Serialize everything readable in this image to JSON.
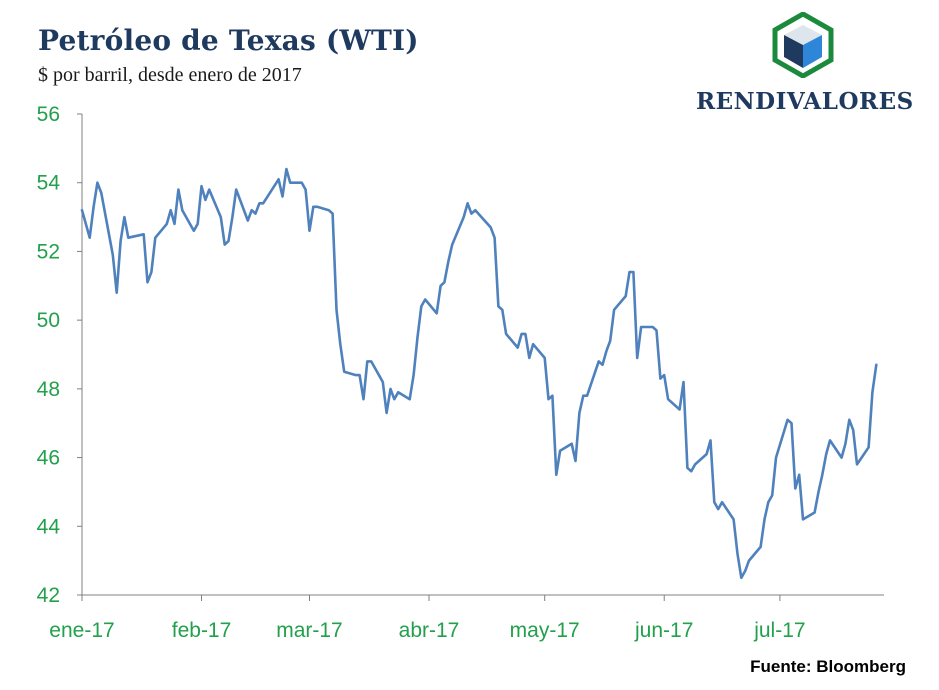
{
  "header": {
    "title": "Petróleo de Texas (WTI)",
    "subtitle": "$ por barril, desde enero de 2017"
  },
  "logo": {
    "text": "RENDIVALORES",
    "colors": {
      "frame": "#1c8a3c",
      "dark": "#1f3a5f",
      "light": "#2e86d9"
    }
  },
  "source": "Fuente: Bloomberg",
  "colors": {
    "line": "#4f81bd",
    "axis": "#808080",
    "tick_text": "#22a04b"
  },
  "chart_data": {
    "type": "line",
    "title": "Petróleo de Texas (WTI)",
    "subtitle": "$ por barril, desde enero de 2017",
    "ylim": [
      42,
      56
    ],
    "yticks": [
      42,
      44,
      46,
      48,
      50,
      52,
      54,
      56
    ],
    "xlim": [
      "2017-01-01",
      "2017-07-28"
    ],
    "xticks": [
      {
        "label": "ene-17",
        "date": "2017-01-01"
      },
      {
        "label": "feb-17",
        "date": "2017-02-01"
      },
      {
        "label": "mar-17",
        "date": "2017-03-01"
      },
      {
        "label": "abr-17",
        "date": "2017-04-01"
      },
      {
        "label": "may-17",
        "date": "2017-05-01"
      },
      {
        "label": "jun-17",
        "date": "2017-06-01"
      },
      {
        "label": "jul-17",
        "date": "2017-07-01"
      }
    ],
    "grid": false,
    "series": [
      {
        "values": [
          [
            "2017-01-01",
            53.2
          ],
          [
            "2017-01-03",
            52.4
          ],
          [
            "2017-01-04",
            53.3
          ],
          [
            "2017-01-05",
            54.0
          ],
          [
            "2017-01-06",
            53.7
          ],
          [
            "2017-01-09",
            51.9
          ],
          [
            "2017-01-10",
            50.8
          ],
          [
            "2017-01-11",
            52.3
          ],
          [
            "2017-01-12",
            53.0
          ],
          [
            "2017-01-13",
            52.4
          ],
          [
            "2017-01-17",
            52.5
          ],
          [
            "2017-01-18",
            51.1
          ],
          [
            "2017-01-19",
            51.4
          ],
          [
            "2017-01-20",
            52.4
          ],
          [
            "2017-01-23",
            52.8
          ],
          [
            "2017-01-24",
            53.2
          ],
          [
            "2017-01-25",
            52.8
          ],
          [
            "2017-01-26",
            53.8
          ],
          [
            "2017-01-27",
            53.2
          ],
          [
            "2017-01-30",
            52.6
          ],
          [
            "2017-01-31",
            52.8
          ],
          [
            "2017-02-01",
            53.9
          ],
          [
            "2017-02-02",
            53.5
          ],
          [
            "2017-02-03",
            53.8
          ],
          [
            "2017-02-06",
            53.0
          ],
          [
            "2017-02-07",
            52.2
          ],
          [
            "2017-02-08",
            52.3
          ],
          [
            "2017-02-09",
            53.0
          ],
          [
            "2017-02-10",
            53.8
          ],
          [
            "2017-02-13",
            52.9
          ],
          [
            "2017-02-14",
            53.2
          ],
          [
            "2017-02-15",
            53.1
          ],
          [
            "2017-02-16",
            53.4
          ],
          [
            "2017-02-17",
            53.4
          ],
          [
            "2017-02-21",
            54.1
          ],
          [
            "2017-02-22",
            53.6
          ],
          [
            "2017-02-23",
            54.4
          ],
          [
            "2017-02-24",
            54.0
          ],
          [
            "2017-02-27",
            54.0
          ],
          [
            "2017-02-28",
            53.8
          ],
          [
            "2017-03-01",
            52.6
          ],
          [
            "2017-03-02",
            53.3
          ],
          [
            "2017-03-03",
            53.3
          ],
          [
            "2017-03-06",
            53.2
          ],
          [
            "2017-03-07",
            53.1
          ],
          [
            "2017-03-08",
            50.3
          ],
          [
            "2017-03-09",
            49.3
          ],
          [
            "2017-03-10",
            48.5
          ],
          [
            "2017-03-13",
            48.4
          ],
          [
            "2017-03-14",
            48.4
          ],
          [
            "2017-03-15",
            47.7
          ],
          [
            "2017-03-16",
            48.8
          ],
          [
            "2017-03-17",
            48.8
          ],
          [
            "2017-03-20",
            48.2
          ],
          [
            "2017-03-21",
            47.3
          ],
          [
            "2017-03-22",
            48.0
          ],
          [
            "2017-03-23",
            47.7
          ],
          [
            "2017-03-24",
            47.9
          ],
          [
            "2017-03-27",
            47.7
          ],
          [
            "2017-03-28",
            48.4
          ],
          [
            "2017-03-29",
            49.5
          ],
          [
            "2017-03-30",
            50.4
          ],
          [
            "2017-03-31",
            50.6
          ],
          [
            "2017-04-03",
            50.2
          ],
          [
            "2017-04-04",
            51.0
          ],
          [
            "2017-04-05",
            51.1
          ],
          [
            "2017-04-06",
            51.7
          ],
          [
            "2017-04-07",
            52.2
          ],
          [
            "2017-04-10",
            53.0
          ],
          [
            "2017-04-11",
            53.4
          ],
          [
            "2017-04-12",
            53.1
          ],
          [
            "2017-04-13",
            53.2
          ],
          [
            "2017-04-17",
            52.7
          ],
          [
            "2017-04-18",
            52.4
          ],
          [
            "2017-04-19",
            50.4
          ],
          [
            "2017-04-20",
            50.3
          ],
          [
            "2017-04-21",
            49.6
          ],
          [
            "2017-04-24",
            49.2
          ],
          [
            "2017-04-25",
            49.6
          ],
          [
            "2017-04-26",
            49.6
          ],
          [
            "2017-04-27",
            48.9
          ],
          [
            "2017-04-28",
            49.3
          ],
          [
            "2017-05-01",
            48.9
          ],
          [
            "2017-05-02",
            47.7
          ],
          [
            "2017-05-03",
            47.8
          ],
          [
            "2017-05-04",
            45.5
          ],
          [
            "2017-05-05",
            46.2
          ],
          [
            "2017-05-08",
            46.4
          ],
          [
            "2017-05-09",
            45.9
          ],
          [
            "2017-05-10",
            47.3
          ],
          [
            "2017-05-11",
            47.8
          ],
          [
            "2017-05-12",
            47.8
          ],
          [
            "2017-05-15",
            48.8
          ],
          [
            "2017-05-16",
            48.7
          ],
          [
            "2017-05-17",
            49.1
          ],
          [
            "2017-05-18",
            49.4
          ],
          [
            "2017-05-19",
            50.3
          ],
          [
            "2017-05-22",
            50.7
          ],
          [
            "2017-05-23",
            51.4
          ],
          [
            "2017-05-24",
            51.4
          ],
          [
            "2017-05-25",
            48.9
          ],
          [
            "2017-05-26",
            49.8
          ],
          [
            "2017-05-29",
            49.8
          ],
          [
            "2017-05-30",
            49.7
          ],
          [
            "2017-05-31",
            48.3
          ],
          [
            "2017-06-01",
            48.4
          ],
          [
            "2017-06-02",
            47.7
          ],
          [
            "2017-06-05",
            47.4
          ],
          [
            "2017-06-06",
            48.2
          ],
          [
            "2017-06-07",
            45.7
          ],
          [
            "2017-06-08",
            45.6
          ],
          [
            "2017-06-09",
            45.8
          ],
          [
            "2017-06-12",
            46.1
          ],
          [
            "2017-06-13",
            46.5
          ],
          [
            "2017-06-14",
            44.7
          ],
          [
            "2017-06-15",
            44.5
          ],
          [
            "2017-06-16",
            44.7
          ],
          [
            "2017-06-19",
            44.2
          ],
          [
            "2017-06-20",
            43.2
          ],
          [
            "2017-06-21",
            42.5
          ],
          [
            "2017-06-22",
            42.7
          ],
          [
            "2017-06-23",
            43.0
          ],
          [
            "2017-06-26",
            43.4
          ],
          [
            "2017-06-27",
            44.2
          ],
          [
            "2017-06-28",
            44.7
          ],
          [
            "2017-06-29",
            44.9
          ],
          [
            "2017-06-30",
            46.0
          ],
          [
            "2017-07-03",
            47.1
          ],
          [
            "2017-07-04",
            47.0
          ],
          [
            "2017-07-05",
            45.1
          ],
          [
            "2017-07-06",
            45.5
          ],
          [
            "2017-07-07",
            44.2
          ],
          [
            "2017-07-10",
            44.4
          ],
          [
            "2017-07-11",
            45.0
          ],
          [
            "2017-07-12",
            45.5
          ],
          [
            "2017-07-13",
            46.1
          ],
          [
            "2017-07-14",
            46.5
          ],
          [
            "2017-07-17",
            46.0
          ],
          [
            "2017-07-18",
            46.4
          ],
          [
            "2017-07-19",
            47.1
          ],
          [
            "2017-07-20",
            46.8
          ],
          [
            "2017-07-21",
            45.8
          ],
          [
            "2017-07-24",
            46.3
          ],
          [
            "2017-07-25",
            47.9
          ],
          [
            "2017-07-26",
            48.7
          ]
        ]
      }
    ]
  }
}
